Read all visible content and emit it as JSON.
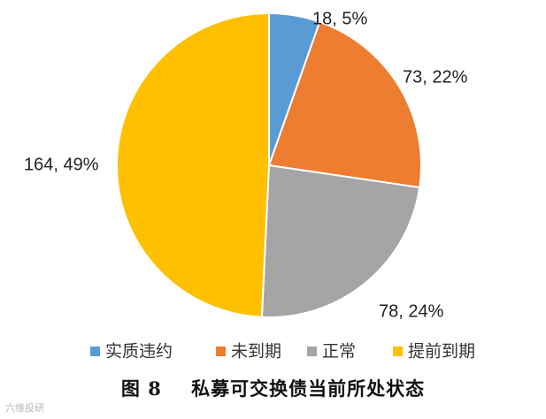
{
  "chart_data": {
    "type": "pie",
    "categories": [
      "实质违约",
      "未到期",
      "正常",
      "提前到期"
    ],
    "values": [
      18,
      73,
      78,
      164
    ],
    "percents": [
      "5%",
      "22%",
      "24%",
      "49%"
    ],
    "labels": [
      "18, 5%",
      "73, 22%",
      "78, 24%",
      "164, 49%"
    ],
    "colors": [
      "#5B9BD5",
      "#ED7D31",
      "#A5A5A5",
      "#FFC000"
    ],
    "start_angle": "12 o'clock",
    "direction": "clockwise",
    "legend_position": "bottom"
  },
  "caption": {
    "figure_no": "图 8",
    "title": "私募可交换债当前所处状态"
  },
  "watermark": {
    "text": "六维投研"
  }
}
